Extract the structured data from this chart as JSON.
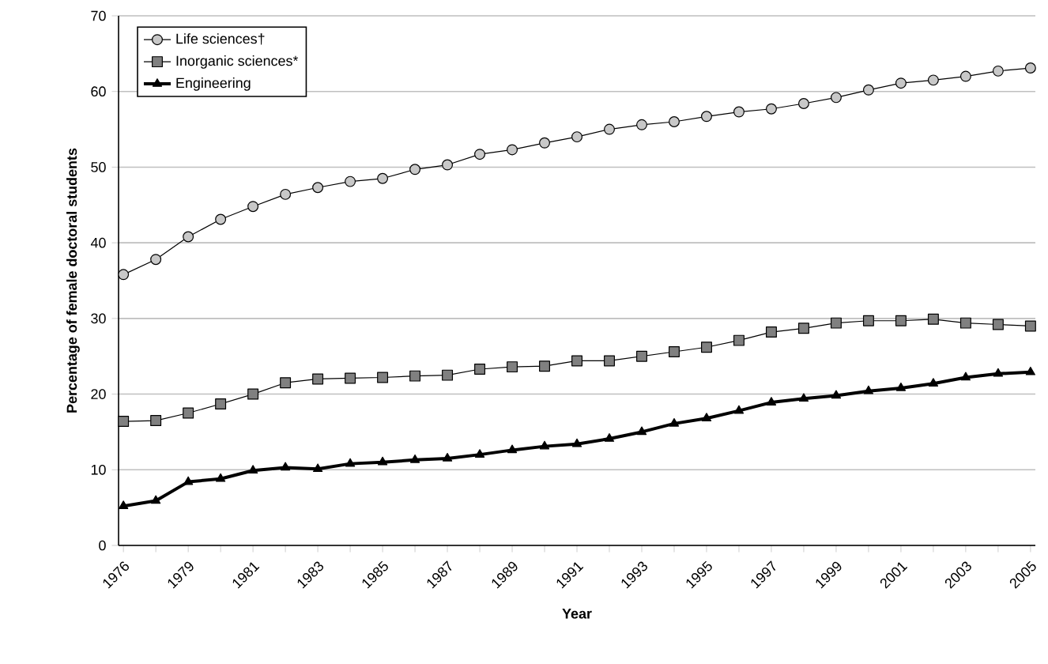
{
  "chart_data": {
    "type": "line",
    "xlabel": "Year",
    "ylabel": "Percentage of female doctoral students",
    "categories": [
      "1976",
      null,
      "1979",
      null,
      "1981",
      null,
      "1983",
      null,
      "1985",
      null,
      "1987",
      null,
      "1989",
      null,
      "1991",
      null,
      "1993",
      null,
      "1995",
      null,
      "1997",
      null,
      "1999",
      null,
      "2001",
      null,
      "2003",
      null,
      "2005"
    ],
    "series": [
      {
        "name": "Life sciences†",
        "color": "#c8c8c8",
        "marker": "circle",
        "values": [
          35.8,
          37.8,
          40.8,
          43.1,
          44.8,
          46.4,
          47.3,
          48.1,
          48.5,
          49.7,
          50.3,
          51.7,
          52.3,
          53.2,
          54.0,
          55.0,
          55.6,
          56.0,
          56.7,
          57.3,
          57.7,
          58.4,
          59.2,
          60.2,
          61.1,
          61.5,
          62.0,
          62.7,
          63.1
        ]
      },
      {
        "name": "Inorganic sciences*",
        "color": "#808080",
        "marker": "square",
        "values": [
          16.4,
          16.5,
          17.5,
          18.7,
          20.0,
          21.5,
          22.0,
          22.1,
          22.2,
          22.4,
          22.5,
          23.3,
          23.6,
          23.7,
          24.4,
          24.4,
          25.0,
          25.6,
          26.2,
          27.1,
          28.2,
          28.7,
          29.4,
          29.7,
          29.7,
          29.9,
          29.4,
          29.2,
          29.0
        ]
      },
      {
        "name": "Engineering",
        "color": "#000000",
        "marker": "triangle",
        "values": [
          5.2,
          5.9,
          8.4,
          8.8,
          9.9,
          10.3,
          10.1,
          10.8,
          11.0,
          11.3,
          11.5,
          12.0,
          12.6,
          13.1,
          13.4,
          14.1,
          15.0,
          16.1,
          16.8,
          17.8,
          18.9,
          19.4,
          19.8,
          20.4,
          20.8,
          21.4,
          22.2,
          22.7,
          22.9
        ]
      }
    ],
    "ylim": [
      0,
      70
    ],
    "yticks": [
      0,
      10,
      20,
      30,
      40,
      50,
      60,
      70
    ],
    "grid": "y",
    "legend": "top left",
    "line_style": "solid"
  }
}
